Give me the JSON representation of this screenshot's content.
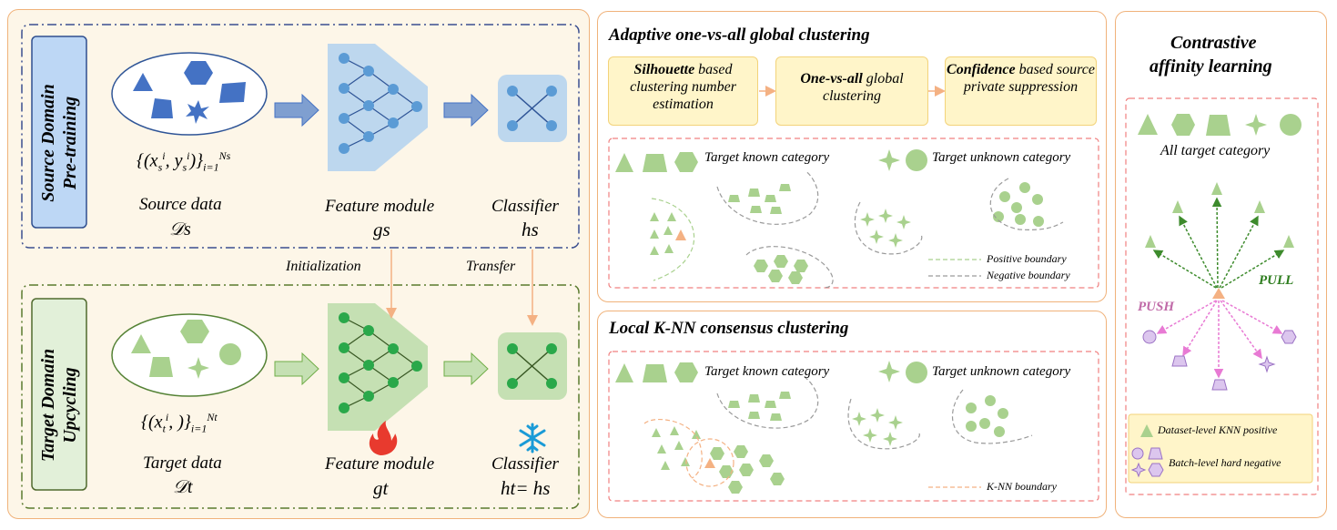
{
  "left": {
    "source_label": [
      "Source Domain",
      "Pre-training"
    ],
    "target_label": [
      "Target Domain",
      "Upcycling"
    ],
    "source_formula": "{(xsi, ysi)}i=1Ns",
    "source_data_label": "Source data",
    "source_data_symbol": "𝒟s",
    "feature_module_label": "Feature module",
    "gs_symbol": "gs",
    "classifier_label": "Classifier",
    "hs_symbol": "hs",
    "initialization_label": "Initialization",
    "transfer_label": "Transfer",
    "target_formula": "{(xti, )}i=1Nt",
    "target_data_label": "Target data",
    "target_data_symbol": "𝒟t",
    "gt_symbol": "gt",
    "ht_symbol": "ht= hs",
    "fire_icon": "fire-icon",
    "snowflake_icon": "snowflake-icon"
  },
  "middle_top": {
    "title": "Adaptive one-vs-all global clustering",
    "steps": [
      {
        "bold": "Silhouette",
        "rest": " based clustering number estimation"
      },
      {
        "bold": "One-vs-all",
        "rest": " global clustering"
      },
      {
        "bold": "Confidence",
        "rest": " based source private suppression"
      }
    ],
    "known_label": "Target known category",
    "unknown_label": "Target unknown category",
    "positive_boundary": "Positive boundary",
    "negative_boundary": "Negative boundary"
  },
  "middle_bottom": {
    "title": "Local K-NN consensus clustering",
    "known_label": "Target known category",
    "unknown_label": "Target unknown category",
    "knn_boundary": "K-NN boundary"
  },
  "right": {
    "title_line1": "Contrastive",
    "title_line2": "affinity learning",
    "all_target": "All target category",
    "push": "PUSH",
    "pull": "PULL",
    "legend_positive": "Dataset-level KNN positive",
    "legend_negative": "Batch-level hard negative"
  },
  "colors": {
    "panel_border": "#f0b27a",
    "panel_bg": "#fdf6e8",
    "blue": "#4472c4",
    "green": "#a9d18e",
    "pink": "#e87ad4",
    "purple": "#dcc6ee",
    "orange": "#f4b183"
  }
}
